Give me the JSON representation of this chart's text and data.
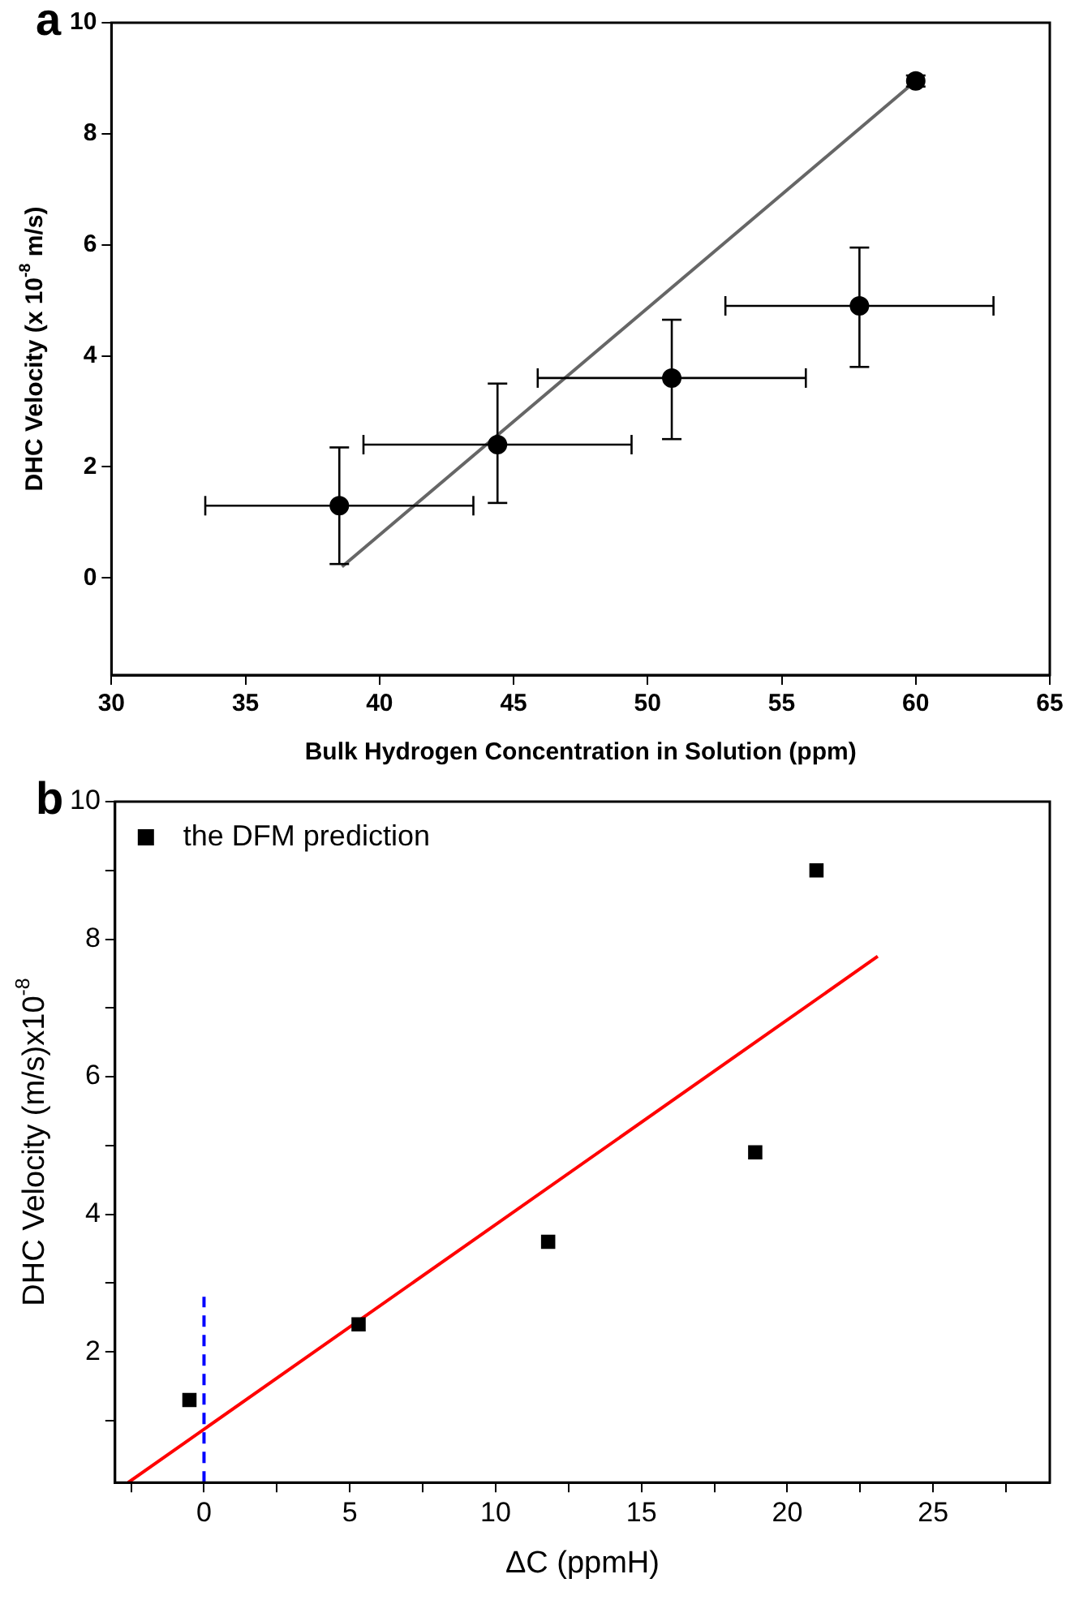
{
  "chart_data": [
    {
      "type": "scatter",
      "title": "a",
      "xlabel": "Bulk Hydrogen Concentration in Solution (ppm)",
      "ylabel": "DHC Velocity (x 10$^{-8}$ m/s)",
      "xlim": [
        30,
        65
      ],
      "ylim": [
        -1.75,
        10
      ],
      "xticks": [
        30,
        35,
        40,
        45,
        50,
        55,
        60,
        65
      ],
      "yticks": [
        0,
        2,
        4,
        6,
        8,
        10
      ],
      "legend": false,
      "series": [
        {
          "type": "scatter",
          "color": "#000000",
          "marker": "circle",
          "x": [
            38.5,
            44.4,
            50.9,
            57.9,
            60
          ],
          "values": [
            1.3,
            2.4,
            3.6,
            4.9,
            8.95
          ],
          "errors": [
            [
              0.25,
              2.35
            ],
            [
              1.35,
              3.5
            ],
            [
              2.5,
              4.65
            ],
            [
              3.8,
              5.95
            ],
            [
              8.85,
              9.05
            ]
          ],
          "xerrors": [
            [
              33.5,
              43.5
            ],
            [
              39.4,
              49.4
            ],
            [
              45.9,
              55.9
            ],
            [
              52.9,
              62.9
            ],
            null
          ]
        },
        {
          "type": "line",
          "color": "#666666",
          "marker": "none",
          "x": [
            38.6,
            60
          ],
          "values": [
            0.2,
            8.95
          ]
        }
      ]
    },
    {
      "type": "scatter",
      "title": "b",
      "xlabel": "ΔC (ppmH)",
      "ylabel": "DHC Velocity (m/s)x10$^{-8}$",
      "xlim": [
        -3.05,
        29
      ],
      "ylim": [
        0.1,
        10
      ],
      "xticks": [
        {
          "value": -2.5,
          "label": null
        },
        0,
        {
          "value": 2.5,
          "label": null
        },
        5,
        {
          "value": 7.5,
          "label": null
        },
        10,
        {
          "value": 12.5,
          "label": null
        },
        15,
        {
          "value": 17.5,
          "label": null
        },
        20,
        {
          "value": 22.5,
          "label": null
        },
        25,
        {
          "value": 27.5,
          "label": null
        }
      ],
      "yticks": [
        {
          "value": 1,
          "label": null
        },
        2,
        {
          "value": 3,
          "label": null
        },
        4,
        {
          "value": 5,
          "label": null
        },
        6,
        {
          "value": 7,
          "label": null
        },
        8,
        {
          "value": 9,
          "label": null
        },
        10
      ],
      "legend": "top left",
      "series": [
        {
          "type": "scatter",
          "name": "the DFM prediction",
          "color": "#000000",
          "marker": "square",
          "x": [
            -0.5,
            5.3,
            11.8,
            18.9,
            21
          ],
          "values": [
            1.3,
            2.4,
            3.6,
            4.9,
            9.0
          ]
        },
        {
          "type": "line",
          "color": "#ff0000",
          "marker": "none",
          "line_style": "solid",
          "x": [
            -2.6,
            23.1
          ],
          "values": [
            0.1,
            7.75
          ]
        },
        {
          "type": "line",
          "color": "#0000ff",
          "marker": "none",
          "line_style": "dashed",
          "x": [
            0,
            0
          ],
          "values": [
            0.1,
            2.8
          ]
        }
      ]
    }
  ]
}
